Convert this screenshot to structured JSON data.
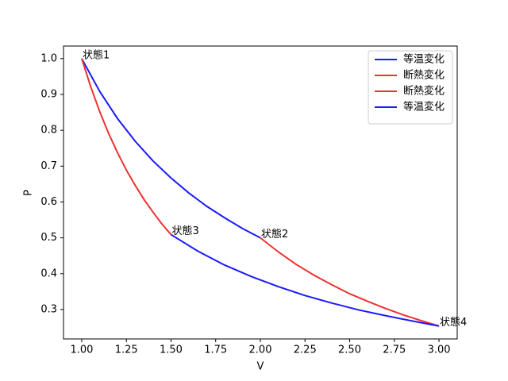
{
  "chart_data": {
    "type": "line",
    "xlabel": "V",
    "ylabel": "P",
    "xlim": [
      0.898,
      3.102
    ],
    "ylim": [
      0.218,
      1.035
    ],
    "xticks": [
      {
        "value": 1.0,
        "label": "1.00"
      },
      1.25,
      {
        "value": 1.5,
        "label": "1.50"
      },
      1.75,
      {
        "value": 2.0,
        "label": "2.00"
      },
      2.25,
      {
        "value": 2.5,
        "label": "2.50"
      },
      2.75,
      {
        "value": 3.0,
        "label": "3.00"
      }
    ],
    "yticks": [
      0.3,
      0.4,
      0.5,
      0.6,
      0.7,
      0.8,
      0.9,
      {
        "value": 1.0,
        "label": "1.0"
      }
    ],
    "legend": "upper right",
    "series": [
      {
        "name": "等温変化",
        "color": "#1a1aff",
        "x": [
          1.0,
          1.1,
          1.2,
          1.3,
          1.4,
          1.5,
          1.6,
          1.7,
          1.8,
          1.9,
          2.0
        ],
        "values": [
          1.0,
          0.909,
          0.833,
          0.769,
          0.714,
          0.667,
          0.625,
          0.588,
          0.556,
          0.526,
          0.5
        ]
      },
      {
        "name": "断熱変化",
        "color": "#f03030",
        "x": [
          1.0,
          1.05,
          1.1,
          1.15,
          1.2,
          1.25,
          1.3,
          1.35,
          1.4,
          1.45,
          1.5
        ],
        "values": [
          1.0,
          0.922,
          0.853,
          0.792,
          0.738,
          0.689,
          0.646,
          0.606,
          0.571,
          0.538,
          0.509
        ]
      },
      {
        "name": "断熱変化",
        "color": "#f03030",
        "x": [
          2.0,
          2.1,
          2.2,
          2.3,
          2.4,
          2.5,
          2.6,
          2.7,
          2.8,
          2.9,
          3.0
        ],
        "values": [
          0.5,
          0.461,
          0.426,
          0.396,
          0.369,
          0.344,
          0.323,
          0.303,
          0.285,
          0.269,
          0.254
        ]
      },
      {
        "name": "等温変化",
        "color": "#1a1aff",
        "x": [
          1.5,
          1.65,
          1.8,
          1.95,
          2.1,
          2.25,
          2.4,
          2.55,
          2.7,
          2.85,
          3.0
        ],
        "values": [
          0.509,
          0.463,
          0.424,
          0.392,
          0.364,
          0.339,
          0.318,
          0.299,
          0.283,
          0.268,
          0.254
        ]
      }
    ],
    "annotations": [
      {
        "text": "状態1",
        "x": 1.0,
        "y": 1.0
      },
      {
        "text": "状態2",
        "x": 2.0,
        "y": 0.5
      },
      {
        "text": "状態3",
        "x": 1.5,
        "y": 0.509
      },
      {
        "text": "状態4",
        "x": 3.0,
        "y": 0.254
      }
    ]
  }
}
